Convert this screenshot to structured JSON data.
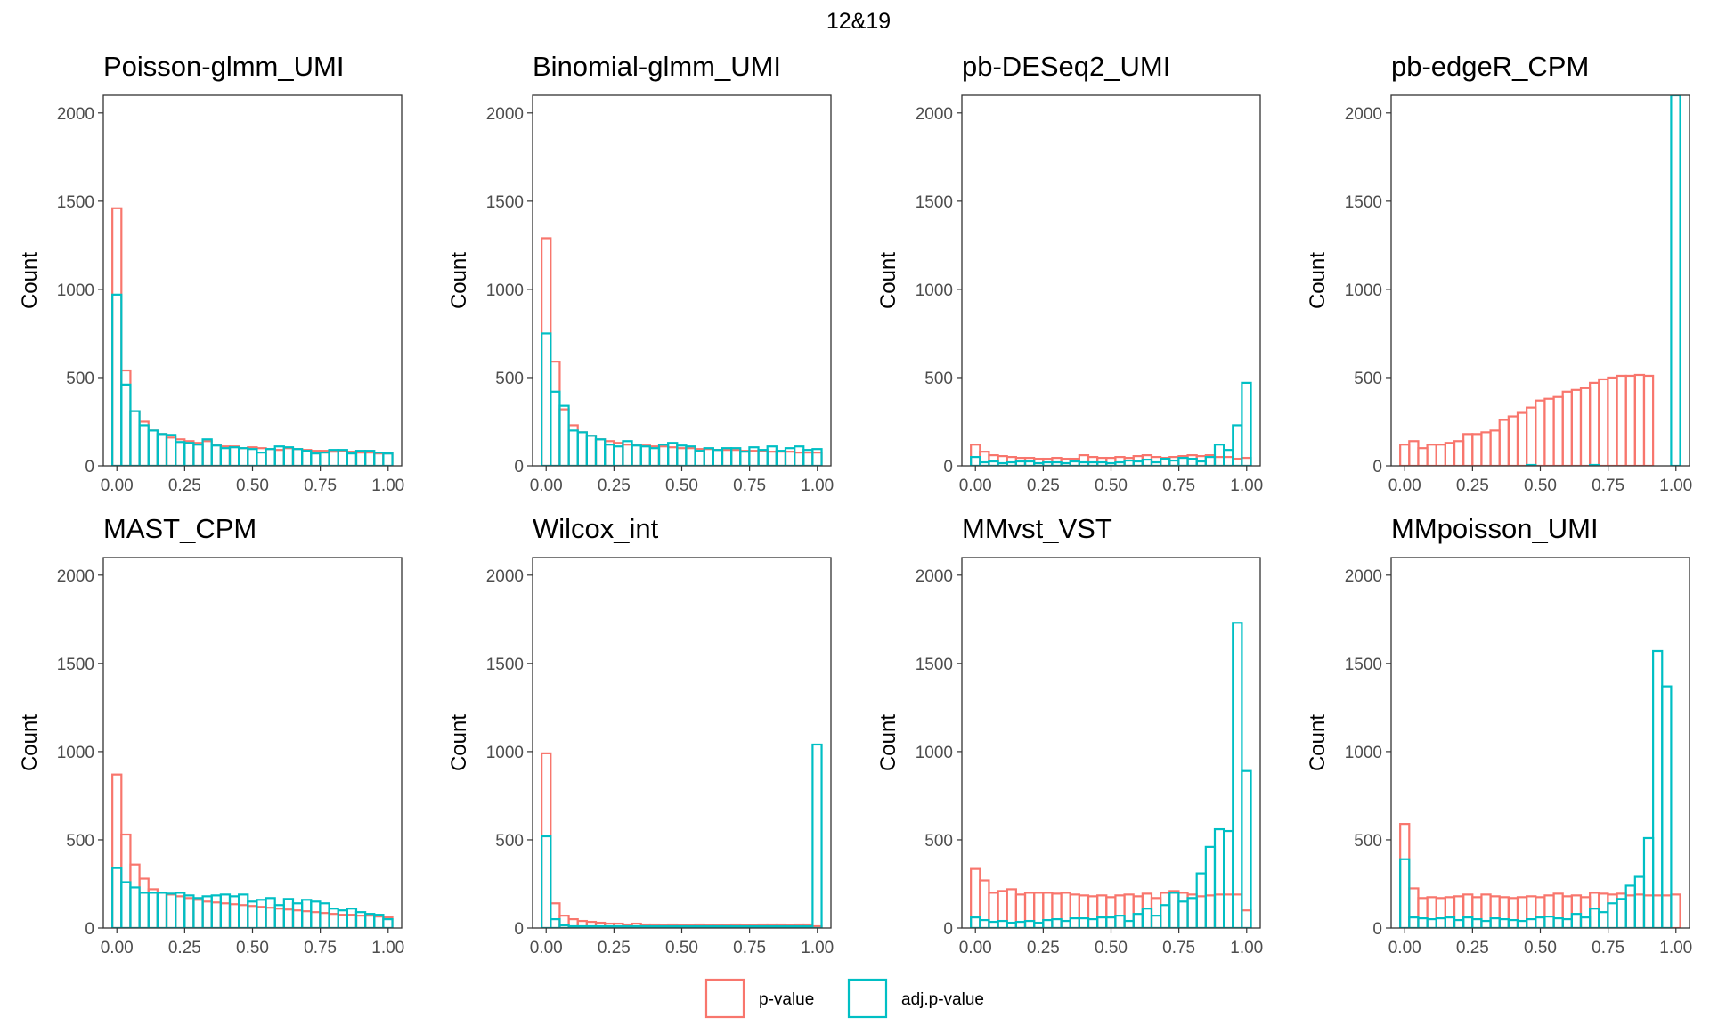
{
  "title": "12&19",
  "colors": {
    "pvalue": "#F8766D",
    "adjpvalue": "#00BFC4",
    "background_series": "#bdbdbd"
  },
  "legend": [
    {
      "label": "p-value",
      "color": "#F8766D"
    },
    {
      "label": "adj.p-value",
      "color": "#00BFC4"
    }
  ],
  "chart_data": [
    {
      "type": "bar",
      "title": "Poisson-glmm_UMI",
      "ylabel": "Count",
      "xlabel": "",
      "xlim": [
        -0.05,
        1.05
      ],
      "ylim": [
        0,
        2100
      ],
      "xticks": [
        "0.00",
        "0.25",
        "0.50",
        "0.75",
        "1.00"
      ],
      "yticks": [
        "0",
        "500",
        "1000",
        "1500",
        "2000"
      ],
      "bin_width": 0.0333,
      "series": [
        {
          "name": "p-value",
          "values": [
            1460,
            540,
            310,
            250,
            200,
            180,
            160,
            150,
            140,
            130,
            140,
            120,
            110,
            110,
            100,
            105,
            100,
            95,
            90,
            100,
            95,
            90,
            85,
            85,
            80,
            85,
            80,
            75,
            75,
            70,
            70
          ]
        },
        {
          "name": "adj.p-value",
          "values": [
            970,
            460,
            310,
            230,
            200,
            180,
            175,
            135,
            130,
            120,
            150,
            115,
            100,
            105,
            100,
            95,
            75,
            95,
            110,
            105,
            95,
            85,
            70,
            75,
            90,
            90,
            70,
            85,
            85,
            75,
            70
          ]
        }
      ]
    },
    {
      "type": "bar",
      "title": "Binomial-glmm_UMI",
      "ylabel": "Count",
      "xlabel": "",
      "xlim": [
        -0.05,
        1.05
      ],
      "ylim": [
        0,
        2100
      ],
      "xticks": [
        "0.00",
        "0.25",
        "0.50",
        "0.75",
        "1.00"
      ],
      "yticks": [
        "0",
        "500",
        "1000",
        "1500",
        "2000"
      ],
      "bin_width": 0.0333,
      "series": [
        {
          "name": "p-value",
          "values": [
            1290,
            590,
            320,
            230,
            190,
            170,
            150,
            140,
            130,
            120,
            120,
            115,
            110,
            110,
            105,
            100,
            100,
            95,
            95,
            90,
            90,
            90,
            85,
            85,
            85,
            80,
            80,
            80,
            75,
            75,
            75
          ]
        },
        {
          "name": "adj.p-value",
          "values": [
            750,
            420,
            340,
            200,
            190,
            170,
            150,
            120,
            110,
            140,
            115,
            110,
            100,
            120,
            130,
            115,
            110,
            85,
            100,
            90,
            100,
            100,
            80,
            105,
            90,
            110,
            85,
            100,
            110,
            90,
            95
          ]
        }
      ]
    },
    {
      "type": "bar",
      "title": "pb-DESeq2_UMI",
      "ylabel": "Count",
      "xlabel": "",
      "xlim": [
        -0.05,
        1.05
      ],
      "ylim": [
        0,
        2100
      ],
      "xticks": [
        "0.00",
        "0.25",
        "0.50",
        "0.75",
        "1.00"
      ],
      "yticks": [
        "0",
        "500",
        "1000",
        "1500",
        "2000"
      ],
      "bin_width": 0.0333,
      "series": [
        {
          "name": "p-value",
          "values": [
            120,
            80,
            60,
            55,
            50,
            45,
            45,
            40,
            40,
            45,
            40,
            40,
            60,
            50,
            45,
            45,
            50,
            45,
            55,
            60,
            50,
            45,
            50,
            55,
            60,
            55,
            60,
            50,
            50,
            40,
            45
          ]
        },
        {
          "name": "adj.p-value",
          "values": [
            50,
            20,
            25,
            15,
            20,
            25,
            25,
            15,
            20,
            20,
            15,
            25,
            20,
            20,
            20,
            15,
            20,
            30,
            25,
            35,
            20,
            40,
            30,
            45,
            40,
            25,
            50,
            120,
            90,
            230,
            470
          ]
        }
      ]
    },
    {
      "type": "bar",
      "title": "pb-edgeR_CPM",
      "ylabel": "Count",
      "xlabel": "",
      "xlim": [
        -0.05,
        1.05
      ],
      "ylim": [
        0,
        2100
      ],
      "xticks": [
        "0.00",
        "0.25",
        "0.50",
        "0.75",
        "1.00"
      ],
      "yticks": [
        "0",
        "500",
        "1000",
        "1500",
        "2000"
      ],
      "bin_width": 0.0333,
      "series": [
        {
          "name": "p-value",
          "values": [
            120,
            140,
            100,
            120,
            120,
            130,
            140,
            180,
            180,
            190,
            200,
            260,
            280,
            300,
            330,
            370,
            380,
            390,
            420,
            430,
            440,
            470,
            490,
            500,
            510,
            510,
            515,
            510,
            0,
            0,
            0
          ]
        },
        {
          "name": "adj.p-value",
          "values": [
            0,
            0,
            0,
            0,
            0,
            0,
            0,
            0,
            0,
            0,
            0,
            0,
            0,
            0,
            5,
            0,
            0,
            0,
            0,
            0,
            0,
            5,
            0,
            0,
            0,
            0,
            0,
            0,
            0,
            0,
            2100
          ]
        }
      ]
    },
    {
      "type": "bar",
      "title": "MAST_CPM",
      "ylabel": "Count",
      "xlabel": "",
      "xlim": [
        -0.05,
        1.05
      ],
      "ylim": [
        0,
        2100
      ],
      "xticks": [
        "0.00",
        "0.25",
        "0.50",
        "0.75",
        "1.00"
      ],
      "yticks": [
        "0",
        "500",
        "1000",
        "1500",
        "2000"
      ],
      "bin_width": 0.0333,
      "series": [
        {
          "name": "p-value",
          "values": [
            870,
            530,
            360,
            280,
            220,
            200,
            190,
            180,
            170,
            160,
            150,
            145,
            140,
            135,
            130,
            125,
            120,
            115,
            110,
            105,
            100,
            95,
            90,
            85,
            80,
            75,
            75,
            70,
            70,
            65,
            60
          ]
        },
        {
          "name": "adj.p-value",
          "values": [
            340,
            260,
            230,
            200,
            200,
            200,
            195,
            200,
            185,
            170,
            180,
            185,
            190,
            180,
            190,
            150,
            160,
            170,
            130,
            165,
            140,
            160,
            150,
            140,
            110,
            100,
            110,
            90,
            80,
            75,
            50
          ]
        }
      ]
    },
    {
      "type": "bar",
      "title": "Wilcox_int",
      "ylabel": "Count",
      "xlabel": "",
      "xlim": [
        -0.05,
        1.05
      ],
      "ylim": [
        0,
        2100
      ],
      "xticks": [
        "0.00",
        "0.25",
        "0.50",
        "0.75",
        "1.00"
      ],
      "yticks": [
        "0",
        "500",
        "1000",
        "1500",
        "2000"
      ],
      "bin_width": 0.0333,
      "series": [
        {
          "name": "p-value",
          "values": [
            990,
            140,
            70,
            50,
            40,
            35,
            30,
            25,
            25,
            20,
            25,
            20,
            20,
            15,
            20,
            15,
            15,
            20,
            15,
            15,
            15,
            20,
            15,
            15,
            20,
            20,
            20,
            15,
            20,
            20,
            10
          ]
        },
        {
          "name": "adj.p-value",
          "values": [
            520,
            50,
            15,
            10,
            10,
            10,
            10,
            10,
            10,
            10,
            10,
            10,
            10,
            10,
            10,
            10,
            10,
            10,
            10,
            10,
            10,
            10,
            10,
            10,
            10,
            10,
            10,
            10,
            10,
            10,
            1040
          ]
        }
      ]
    },
    {
      "type": "bar",
      "title": "MMvst_VST",
      "ylabel": "Count",
      "xlabel": "",
      "xlim": [
        -0.05,
        1.05
      ],
      "ylim": [
        0,
        2100
      ],
      "xticks": [
        "0.00",
        "0.25",
        "0.50",
        "0.75",
        "1.00"
      ],
      "yticks": [
        "0",
        "500",
        "1000",
        "1500",
        "2000"
      ],
      "bin_width": 0.0333,
      "series": [
        {
          "name": "p-value",
          "values": [
            335,
            270,
            200,
            210,
            220,
            190,
            200,
            200,
            200,
            195,
            200,
            190,
            185,
            180,
            185,
            175,
            185,
            190,
            180,
            195,
            170,
            200,
            210,
            200,
            190,
            180,
            185,
            190,
            190,
            190,
            100
          ]
        },
        {
          "name": "adj.p-value",
          "values": [
            60,
            45,
            35,
            40,
            30,
            35,
            40,
            30,
            45,
            50,
            40,
            55,
            55,
            50,
            60,
            60,
            70,
            40,
            80,
            110,
            70,
            130,
            200,
            150,
            170,
            310,
            460,
            560,
            550,
            1730,
            890
          ]
        }
      ]
    },
    {
      "type": "bar",
      "title": "MMpoisson_UMI",
      "ylabel": "Count",
      "xlabel": "",
      "xlim": [
        -0.05,
        1.05
      ],
      "ylim": [
        0,
        2100
      ],
      "xticks": [
        "0.00",
        "0.25",
        "0.50",
        "0.75",
        "1.00"
      ],
      "yticks": [
        "0",
        "500",
        "1000",
        "1500",
        "2000"
      ],
      "bin_width": 0.0333,
      "series": [
        {
          "name": "p-value",
          "values": [
            590,
            225,
            170,
            175,
            170,
            175,
            180,
            190,
            175,
            190,
            180,
            175,
            170,
            175,
            180,
            175,
            185,
            195,
            180,
            185,
            175,
            200,
            195,
            190,
            195,
            185,
            190,
            185,
            185,
            185,
            190
          ]
        },
        {
          "name": "adj.p-value",
          "values": [
            390,
            60,
            55,
            50,
            55,
            60,
            45,
            60,
            50,
            40,
            55,
            50,
            45,
            40,
            50,
            60,
            65,
            55,
            50,
            80,
            60,
            110,
            90,
            140,
            165,
            240,
            290,
            510,
            1570,
            1370,
            0
          ]
        }
      ]
    }
  ]
}
